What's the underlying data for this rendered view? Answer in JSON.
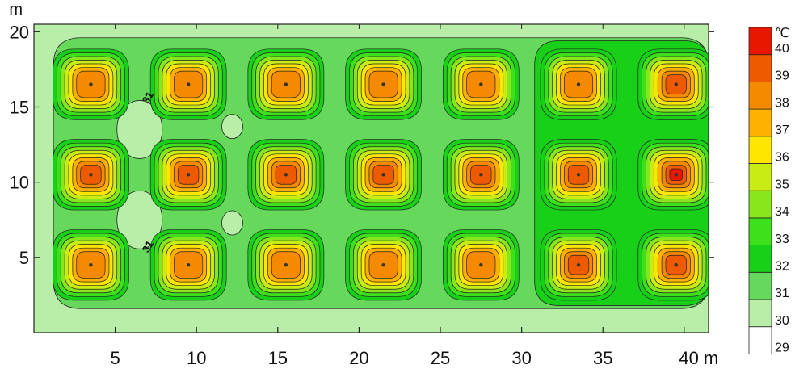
{
  "chart_data": {
    "type": "heatmap",
    "title": "",
    "xlabel": "",
    "ylabel": "",
    "x_unit": "m",
    "y_unit": "m",
    "xlim": [
      0,
      41.5
    ],
    "ylim": [
      0,
      20.5
    ],
    "x_ticks": [
      5,
      10,
      15,
      20,
      25,
      30,
      35,
      40
    ],
    "y_ticks": [
      5,
      10,
      15,
      20
    ],
    "grid": false,
    "colorbar": {
      "unit": "℃",
      "levels": [
        29,
        30,
        31,
        32,
        33,
        34,
        35,
        36,
        37,
        38,
        39,
        40
      ],
      "colors": [
        "#ffffff",
        "#b8eea8",
        "#66d95c",
        "#18d018",
        "#3ee01c",
        "#8ae61c",
        "#c8ec14",
        "#ffe600",
        "#ffb000",
        "#f58a00",
        "#ee5a00",
        "#e81800"
      ]
    },
    "contour_labels": [
      {
        "value": "31",
        "x": 7.2,
        "y": 15.5
      },
      {
        "value": "31",
        "x": 7.2,
        "y": 5.6
      }
    ],
    "heat_sources": [
      {
        "x": 3.5,
        "y": 16.5,
        "peak": 38.5
      },
      {
        "x": 9.5,
        "y": 16.5,
        "peak": 38.5
      },
      {
        "x": 15.5,
        "y": 16.5,
        "peak": 38.5
      },
      {
        "x": 21.5,
        "y": 16.5,
        "peak": 38.5
      },
      {
        "x": 27.5,
        "y": 16.5,
        "peak": 38.5
      },
      {
        "x": 33.5,
        "y": 16.5,
        "peak": 38.5
      },
      {
        "x": 39.5,
        "y": 16.5,
        "peak": 39
      },
      {
        "x": 3.5,
        "y": 10.5,
        "peak": 39
      },
      {
        "x": 9.5,
        "y": 10.5,
        "peak": 39
      },
      {
        "x": 15.5,
        "y": 10.5,
        "peak": 39.5
      },
      {
        "x": 21.5,
        "y": 10.5,
        "peak": 39.5
      },
      {
        "x": 27.5,
        "y": 10.5,
        "peak": 39.5
      },
      {
        "x": 33.5,
        "y": 10.5,
        "peak": 39.5
      },
      {
        "x": 39.5,
        "y": 10.5,
        "peak": 40
      },
      {
        "x": 3.5,
        "y": 4.5,
        "peak": 38.5
      },
      {
        "x": 9.5,
        "y": 4.5,
        "peak": 38.5
      },
      {
        "x": 15.5,
        "y": 4.5,
        "peak": 38.5
      },
      {
        "x": 21.5,
        "y": 4.5,
        "peak": 38.5
      },
      {
        "x": 27.5,
        "y": 4.5,
        "peak": 38.5
      },
      {
        "x": 33.5,
        "y": 4.5,
        "peak": 39
      },
      {
        "x": 39.5,
        "y": 4.5,
        "peak": 39
      }
    ],
    "background_levels": [
      {
        "region": "outer border band",
        "value": 30
      },
      {
        "region": "interior field",
        "value": 31
      },
      {
        "region": "right region x>30",
        "value": 32
      }
    ]
  }
}
